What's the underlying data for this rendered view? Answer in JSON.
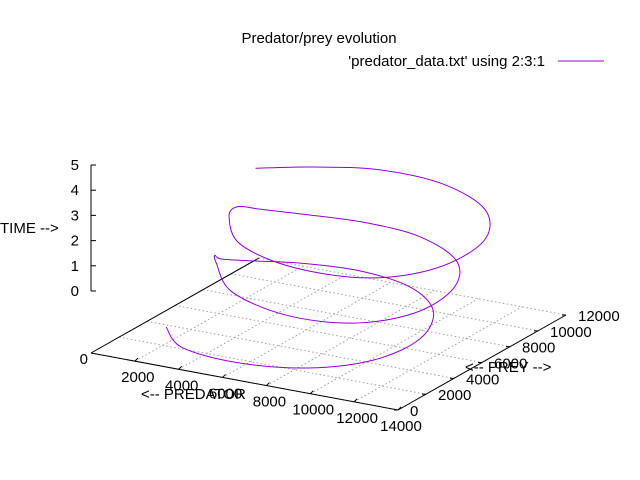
{
  "chart_data": {
    "type": "line",
    "title": "Predator/prey evolution",
    "xlabel": "<-- PREDATOR",
    "ylabel": "<-- PREY -->",
    "zlabel": "TIME -->",
    "xlim": [
      0,
      14000
    ],
    "ylim": [
      0,
      12000
    ],
    "zlim": [
      0,
      5
    ],
    "x_ticks": [
      "2000",
      "4000",
      "6000",
      "8000",
      "10000",
      "12000",
      "14000"
    ],
    "y_ticks": [
      "0",
      "2000",
      "4000",
      "6000",
      "8000",
      "10000",
      "12000"
    ],
    "z_ticks": [
      "0",
      "1",
      "2",
      "3",
      "4",
      "5"
    ],
    "origin_label": "0",
    "grid": true,
    "legend": "top-right",
    "series": [
      {
        "name": "'predator_data.txt' using 2:3:1",
        "color": "#9400d3",
        "points": [
          {
            "x": 1000,
            "y": 3800,
            "z": 0.0
          },
          {
            "x": 3000,
            "y": 1800,
            "z": 0.14
          },
          {
            "x": 6000,
            "y": 1000,
            "z": 0.28
          },
          {
            "x": 9000,
            "y": 1400,
            "z": 0.42
          },
          {
            "x": 11000,
            "y": 3000,
            "z": 0.56
          },
          {
            "x": 11500,
            "y": 5500,
            "z": 0.7
          },
          {
            "x": 10500,
            "y": 8000,
            "z": 0.85
          },
          {
            "x": 8500,
            "y": 9500,
            "z": 1.0
          },
          {
            "x": 6000,
            "y": 9800,
            "z": 1.15
          },
          {
            "x": 3800,
            "y": 9200,
            "z": 1.28
          },
          {
            "x": 2200,
            "y": 8300,
            "z": 1.4
          },
          {
            "x": 1100,
            "y": 7600,
            "z": 1.52
          },
          {
            "x": 800,
            "y": 7600,
            "z": 1.62
          },
          {
            "x": 1500,
            "y": 6600,
            "z": 1.74
          },
          {
            "x": 4000,
            "y": 3800,
            "z": 1.88
          },
          {
            "x": 7500,
            "y": 2200,
            "z": 2.02
          },
          {
            "x": 10500,
            "y": 2300,
            "z": 2.16
          },
          {
            "x": 12200,
            "y": 4000,
            "z": 2.3
          },
          {
            "x": 12300,
            "y": 6600,
            "z": 2.46
          },
          {
            "x": 11000,
            "y": 8900,
            "z": 2.62
          },
          {
            "x": 8500,
            "y": 10200,
            "z": 2.78
          },
          {
            "x": 6000,
            "y": 10200,
            "z": 2.94
          },
          {
            "x": 3800,
            "y": 9600,
            "z": 3.08
          },
          {
            "x": 2000,
            "y": 9000,
            "z": 3.2
          },
          {
            "x": 1200,
            "y": 8600,
            "z": 3.3
          },
          {
            "x": 1700,
            "y": 7200,
            "z": 3.42
          },
          {
            "x": 4000,
            "y": 4400,
            "z": 3.58
          },
          {
            "x": 7500,
            "y": 2700,
            "z": 3.76
          },
          {
            "x": 11000,
            "y": 2600,
            "z": 3.94
          },
          {
            "x": 13000,
            "y": 4300,
            "z": 4.12
          },
          {
            "x": 13300,
            "y": 7200,
            "z": 4.32
          },
          {
            "x": 11800,
            "y": 9700,
            "z": 4.52
          },
          {
            "x": 9000,
            "y": 11100,
            "z": 4.66
          },
          {
            "x": 6000,
            "y": 11200,
            "z": 4.72
          },
          {
            "x": 3500,
            "y": 10400,
            "z": 4.68
          },
          {
            "x": 1500,
            "y": 9400,
            "z": 4.62
          }
        ]
      }
    ]
  }
}
